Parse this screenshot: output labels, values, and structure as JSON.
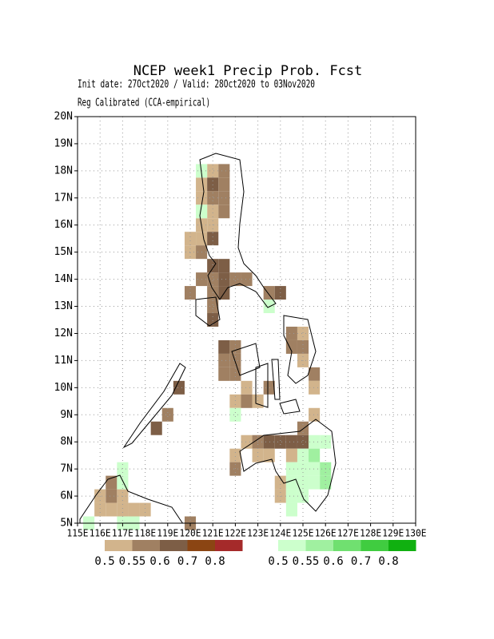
{
  "header": {
    "title": "NCEP week1 Precip Prob. Fcst",
    "line1": "Init date: 27Oct2020 / Valid: 28Oct2020 to 03Nov2020",
    "line2": "Reg Calibrated (CCA-empirical)"
  },
  "chart_data": {
    "type": "map",
    "xlim": [
      115,
      130
    ],
    "ylim": [
      5,
      20
    ],
    "xticks": [
      {
        "value": 115,
        "label": "115E"
      },
      {
        "value": 116,
        "label": "116E"
      },
      {
        "value": 117,
        "label": "117E"
      },
      {
        "value": 118,
        "label": "118E"
      },
      {
        "value": 119,
        "label": "119E"
      },
      {
        "value": 120,
        "label": "120E"
      },
      {
        "value": 121,
        "label": "121E"
      },
      {
        "value": 122,
        "label": "122E"
      },
      {
        "value": 123,
        "label": "123E"
      },
      {
        "value": 124,
        "label": "124E"
      },
      {
        "value": 125,
        "label": "125E"
      },
      {
        "value": 126,
        "label": "126E"
      },
      {
        "value": 127,
        "label": "127E"
      },
      {
        "value": 128,
        "label": "128E"
      },
      {
        "value": 129,
        "label": "129E"
      },
      {
        "value": 130,
        "label": "130E"
      }
    ],
    "yticks": [
      {
        "value": 5,
        "label": "5N"
      },
      {
        "value": 6,
        "label": "6N"
      },
      {
        "value": 7,
        "label": "7N"
      },
      {
        "value": 8,
        "label": "8N"
      },
      {
        "value": 9,
        "label": "9N"
      },
      {
        "value": 10,
        "label": "10N"
      },
      {
        "value": 11,
        "label": "11N"
      },
      {
        "value": 12,
        "label": "12N"
      },
      {
        "value": 13,
        "label": "13N"
      },
      {
        "value": 14,
        "label": "14N"
      },
      {
        "value": 15,
        "label": "15N"
      },
      {
        "value": 16,
        "label": "16N"
      },
      {
        "value": 17,
        "label": "17N"
      },
      {
        "value": 18,
        "label": "18N"
      },
      {
        "value": 19,
        "label": "19N"
      },
      {
        "value": 20,
        "label": "20N"
      }
    ],
    "grid": true,
    "cell_size": 0.5,
    "dry": {
      "levels": [
        0.5,
        0.55,
        0.6,
        0.7,
        0.8
      ],
      "colors": [
        "#d2b48c",
        "#a08062",
        "#7d5e46",
        "#8b4513",
        "#a52a2a"
      ]
    },
    "wet": {
      "levels": [
        0.5,
        0.55,
        0.6,
        0.7,
        0.8
      ],
      "colors": [
        "#ccffcc",
        "#a0f0a0",
        "#70e070",
        "#40cc40",
        "#10b010"
      ]
    },
    "dry_cells": [
      [
        121,
        18,
        0.5
      ],
      [
        121.5,
        18,
        0.55
      ],
      [
        120.5,
        17.5,
        0.5
      ],
      [
        121,
        17.5,
        0.6
      ],
      [
        121.5,
        17.5,
        0.55
      ],
      [
        120.5,
        17,
        0.5
      ],
      [
        121,
        17,
        0.55
      ],
      [
        121.5,
        17,
        0.55
      ],
      [
        121,
        16.5,
        0.5
      ],
      [
        121.5,
        16.5,
        0.55
      ],
      [
        120.5,
        16,
        0.5
      ],
      [
        121,
        16,
        0.5
      ],
      [
        120,
        15.5,
        0.5
      ],
      [
        120.5,
        15.5,
        0.5
      ],
      [
        121,
        15.5,
        0.6
      ],
      [
        120,
        15,
        0.5
      ],
      [
        120.5,
        15,
        0.55
      ],
      [
        121,
        14.5,
        0.6
      ],
      [
        121.5,
        14.5,
        0.6
      ],
      [
        120.5,
        14,
        0.55
      ],
      [
        121,
        14,
        0.55
      ],
      [
        121.5,
        14,
        0.6
      ],
      [
        122,
        14,
        0.55
      ],
      [
        122.5,
        14,
        0.55
      ],
      [
        120,
        13.5,
        0.55
      ],
      [
        121,
        13.5,
        0.55
      ],
      [
        121.5,
        13.5,
        0.6
      ],
      [
        123.5,
        13.5,
        0.55
      ],
      [
        124,
        13.5,
        0.6
      ],
      [
        121,
        13,
        0.55
      ],
      [
        121,
        12.5,
        0.6
      ],
      [
        121.5,
        11.5,
        0.6
      ],
      [
        122,
        11.5,
        0.55
      ],
      [
        121.5,
        11,
        0.55
      ],
      [
        122,
        11,
        0.55
      ],
      [
        121.5,
        10.5,
        0.55
      ],
      [
        122,
        10.5,
        0.55
      ],
      [
        122.5,
        10,
        0.5
      ],
      [
        123.5,
        10,
        0.55
      ],
      [
        122,
        9.5,
        0.5
      ],
      [
        122.5,
        9.5,
        0.55
      ],
      [
        123,
        9.5,
        0.5
      ],
      [
        124.5,
        12,
        0.55
      ],
      [
        125,
        12,
        0.5
      ],
      [
        124.5,
        11.5,
        0.55
      ],
      [
        125,
        11.5,
        0.55
      ],
      [
        125,
        11,
        0.5
      ],
      [
        125.5,
        10.5,
        0.55
      ],
      [
        125.5,
        10,
        0.5
      ],
      [
        125,
        8.5,
        0.55
      ],
      [
        125.5,
        9,
        0.5
      ],
      [
        122.5,
        8,
        0.5
      ],
      [
        123,
        8,
        0.55
      ],
      [
        123.5,
        8,
        0.6
      ],
      [
        124,
        8,
        0.6
      ],
      [
        124.5,
        8,
        0.6
      ],
      [
        125,
        8,
        0.6
      ],
      [
        122,
        7.5,
        0.5
      ],
      [
        123,
        7.5,
        0.5
      ],
      [
        123.5,
        7.5,
        0.5
      ],
      [
        124.5,
        7.5,
        0.5
      ],
      [
        122,
        7,
        0.55
      ],
      [
        124,
        6.5,
        0.5
      ],
      [
        124,
        6,
        0.5
      ],
      [
        119,
        9,
        0.55
      ],
      [
        118.5,
        8.5,
        0.6
      ],
      [
        119.5,
        10,
        0.6
      ],
      [
        116.5,
        6.5,
        0.55
      ],
      [
        116.5,
        6,
        0.55
      ],
      [
        116,
        5.5,
        0.5
      ],
      [
        116.5,
        5.5,
        0.5
      ],
      [
        117,
        5.5,
        0.5
      ],
      [
        117.5,
        5.5,
        0.5
      ],
      [
        118,
        5.5,
        0.5
      ],
      [
        116,
        6,
        0.5
      ],
      [
        117,
        6,
        0.5
      ],
      [
        120,
        5,
        0.55
      ]
    ],
    "wet_cells": [
      [
        120.5,
        18,
        0.5
      ],
      [
        120.5,
        16.5,
        0.5
      ],
      [
        123.5,
        13,
        0.5
      ],
      [
        122,
        9,
        0.5
      ],
      [
        124.5,
        7,
        0.5
      ],
      [
        124.5,
        6.5,
        0.5
      ],
      [
        124.5,
        6,
        0.5
      ],
      [
        125,
        7.5,
        0.5
      ],
      [
        125,
        7,
        0.5
      ],
      [
        125,
        6.5,
        0.5
      ],
      [
        125,
        6,
        0.5
      ],
      [
        125.5,
        8,
        0.5
      ],
      [
        125.5,
        7.5,
        0.55
      ],
      [
        125.5,
        7,
        0.5
      ],
      [
        125.5,
        6.5,
        0.5
      ],
      [
        126,
        7,
        0.55
      ],
      [
        126,
        6.5,
        0.55
      ],
      [
        126,
        8,
        0.5
      ],
      [
        124.5,
        5.5,
        0.5
      ],
      [
        117,
        6.5,
        0.5
      ],
      [
        117,
        7,
        0.5
      ],
      [
        115.5,
        5,
        0.5
      ],
      [
        117,
        5,
        0.5
      ],
      [
        117.5,
        5,
        0.5
      ]
    ]
  }
}
